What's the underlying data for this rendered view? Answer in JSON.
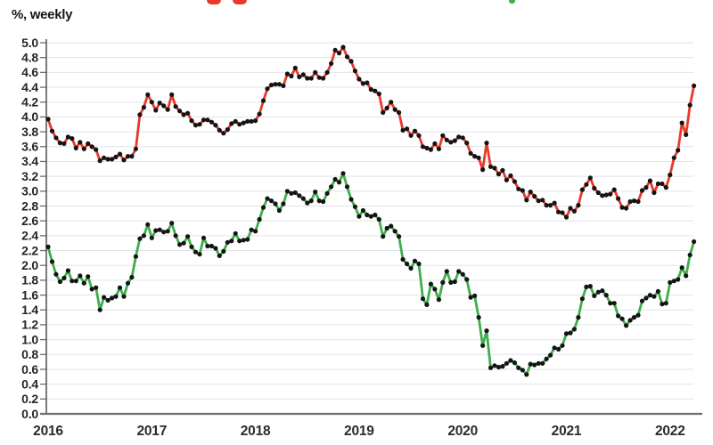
{
  "header": {
    "unit_label": "%, weekly"
  },
  "colors": {
    "red_series": "#e8392a",
    "green_series": "#3fae4c",
    "marker": "#141414",
    "grid": "#e0e3e9",
    "axis_left": "#595959",
    "axis_bottom": "#6f6f6f",
    "tick": "#6f6f6f",
    "tick_text": "#262626"
  },
  "chart_data": {
    "type": "line",
    "title": "",
    "unit_label": "%, weekly",
    "xlabel": "",
    "ylabel": "",
    "ylim": [
      0.0,
      5.0
    ],
    "y_step": 0.2,
    "grid": true,
    "legend_position": "none",
    "marker_style": "black-dot",
    "x_start_year": 2016,
    "points_per_year": 26,
    "x_tick_labels": [
      "2016",
      "2017",
      "2018",
      "2019",
      "2020",
      "2021",
      "2022"
    ],
    "y_tick_labels": [
      "0.0",
      "0.2",
      "0.4",
      "0.6",
      "0.8",
      "1.0",
      "1.2",
      "1.4",
      "1.6",
      "1.8",
      "2.0",
      "2.2",
      "2.4",
      "2.6",
      "2.8",
      "3.0",
      "3.2",
      "3.4",
      "3.6",
      "3.8",
      "4.0",
      "4.2",
      "4.4",
      "4.6",
      "4.8",
      "5.0"
    ],
    "series": [
      {
        "name": "red-series",
        "color": "#e8392a",
        "values": [
          3.97,
          3.81,
          3.72,
          3.65,
          3.64,
          3.73,
          3.71,
          3.58,
          3.66,
          3.57,
          3.64,
          3.6,
          3.56,
          3.41,
          3.45,
          3.43,
          3.43,
          3.46,
          3.5,
          3.42,
          3.47,
          3.47,
          3.57,
          4.03,
          4.13,
          4.3,
          4.2,
          4.09,
          4.19,
          4.15,
          4.1,
          4.3,
          4.14,
          4.08,
          4.03,
          4.05,
          3.95,
          3.89,
          3.9,
          3.96,
          3.96,
          3.93,
          3.89,
          3.82,
          3.78,
          3.83,
          3.91,
          3.94,
          3.9,
          3.92,
          3.94,
          3.94,
          3.95,
          4.04,
          4.22,
          4.38,
          4.43,
          4.44,
          4.44,
          4.42,
          4.58,
          4.55,
          4.66,
          4.54,
          4.57,
          4.52,
          4.52,
          4.6,
          4.53,
          4.52,
          4.6,
          4.72,
          4.9,
          4.86,
          4.94,
          4.81,
          4.75,
          4.62,
          4.51,
          4.45,
          4.46,
          4.37,
          4.35,
          4.31,
          4.06,
          4.12,
          4.2,
          4.1,
          4.06,
          3.82,
          3.84,
          3.75,
          3.81,
          3.75,
          3.6,
          3.58,
          3.56,
          3.64,
          3.57,
          3.75,
          3.69,
          3.66,
          3.68,
          3.73,
          3.72,
          3.65,
          3.51,
          3.47,
          3.45,
          3.29,
          3.65,
          3.33,
          3.31,
          3.23,
          3.28,
          3.15,
          3.21,
          3.13,
          3.03,
          3.01,
          2.88,
          2.99,
          2.93,
          2.87,
          2.88,
          2.81,
          2.81,
          2.84,
          2.72,
          2.71,
          2.65,
          2.77,
          2.73,
          2.81,
          3.02,
          3.09,
          3.18,
          3.04,
          2.98,
          2.94,
          2.95,
          2.96,
          3.02,
          2.9,
          2.78,
          2.77,
          2.86,
          2.87,
          2.86,
          3.01,
          3.05,
          3.14,
          2.98,
          3.1,
          3.1,
          3.05,
          3.22,
          3.45,
          3.55,
          3.92,
          3.76,
          4.16,
          4.42
        ]
      },
      {
        "name": "green-series",
        "color": "#3fae4c",
        "values": [
          2.25,
          2.05,
          1.88,
          1.78,
          1.83,
          1.93,
          1.79,
          1.79,
          1.86,
          1.76,
          1.85,
          1.68,
          1.7,
          1.4,
          1.57,
          1.53,
          1.56,
          1.58,
          1.7,
          1.58,
          1.76,
          1.84,
          2.12,
          2.36,
          2.4,
          2.55,
          2.37,
          2.47,
          2.48,
          2.45,
          2.46,
          2.57,
          2.4,
          2.28,
          2.3,
          2.39,
          2.25,
          2.18,
          2.15,
          2.37,
          2.26,
          2.26,
          2.23,
          2.13,
          2.19,
          2.31,
          2.33,
          2.43,
          2.33,
          2.34,
          2.35,
          2.48,
          2.46,
          2.62,
          2.78,
          2.9,
          2.87,
          2.83,
          2.74,
          2.83,
          3.0,
          2.97,
          2.98,
          2.94,
          2.9,
          2.84,
          2.87,
          2.99,
          2.87,
          2.86,
          2.97,
          3.06,
          3.16,
          3.12,
          3.24,
          3.06,
          2.89,
          2.79,
          2.66,
          2.74,
          2.68,
          2.66,
          2.68,
          2.62,
          2.39,
          2.5,
          2.53,
          2.46,
          2.39,
          2.08,
          2.02,
          1.96,
          2.06,
          2.02,
          1.55,
          1.47,
          1.75,
          1.68,
          1.54,
          1.77,
          1.92,
          1.77,
          1.78,
          1.92,
          1.88,
          1.81,
          1.57,
          1.59,
          1.3,
          0.92,
          1.12,
          0.62,
          0.65,
          0.63,
          0.64,
          0.68,
          0.72,
          0.69,
          0.62,
          0.59,
          0.53,
          0.67,
          0.66,
          0.68,
          0.68,
          0.74,
          0.79,
          0.89,
          0.87,
          0.92,
          1.08,
          1.09,
          1.14,
          1.3,
          1.55,
          1.71,
          1.72,
          1.59,
          1.64,
          1.66,
          1.6,
          1.49,
          1.49,
          1.32,
          1.28,
          1.19,
          1.26,
          1.3,
          1.33,
          1.52,
          1.56,
          1.6,
          1.58,
          1.65,
          1.48,
          1.49,
          1.77,
          1.79,
          1.81,
          1.97,
          1.86,
          2.14,
          2.32
        ]
      }
    ]
  }
}
